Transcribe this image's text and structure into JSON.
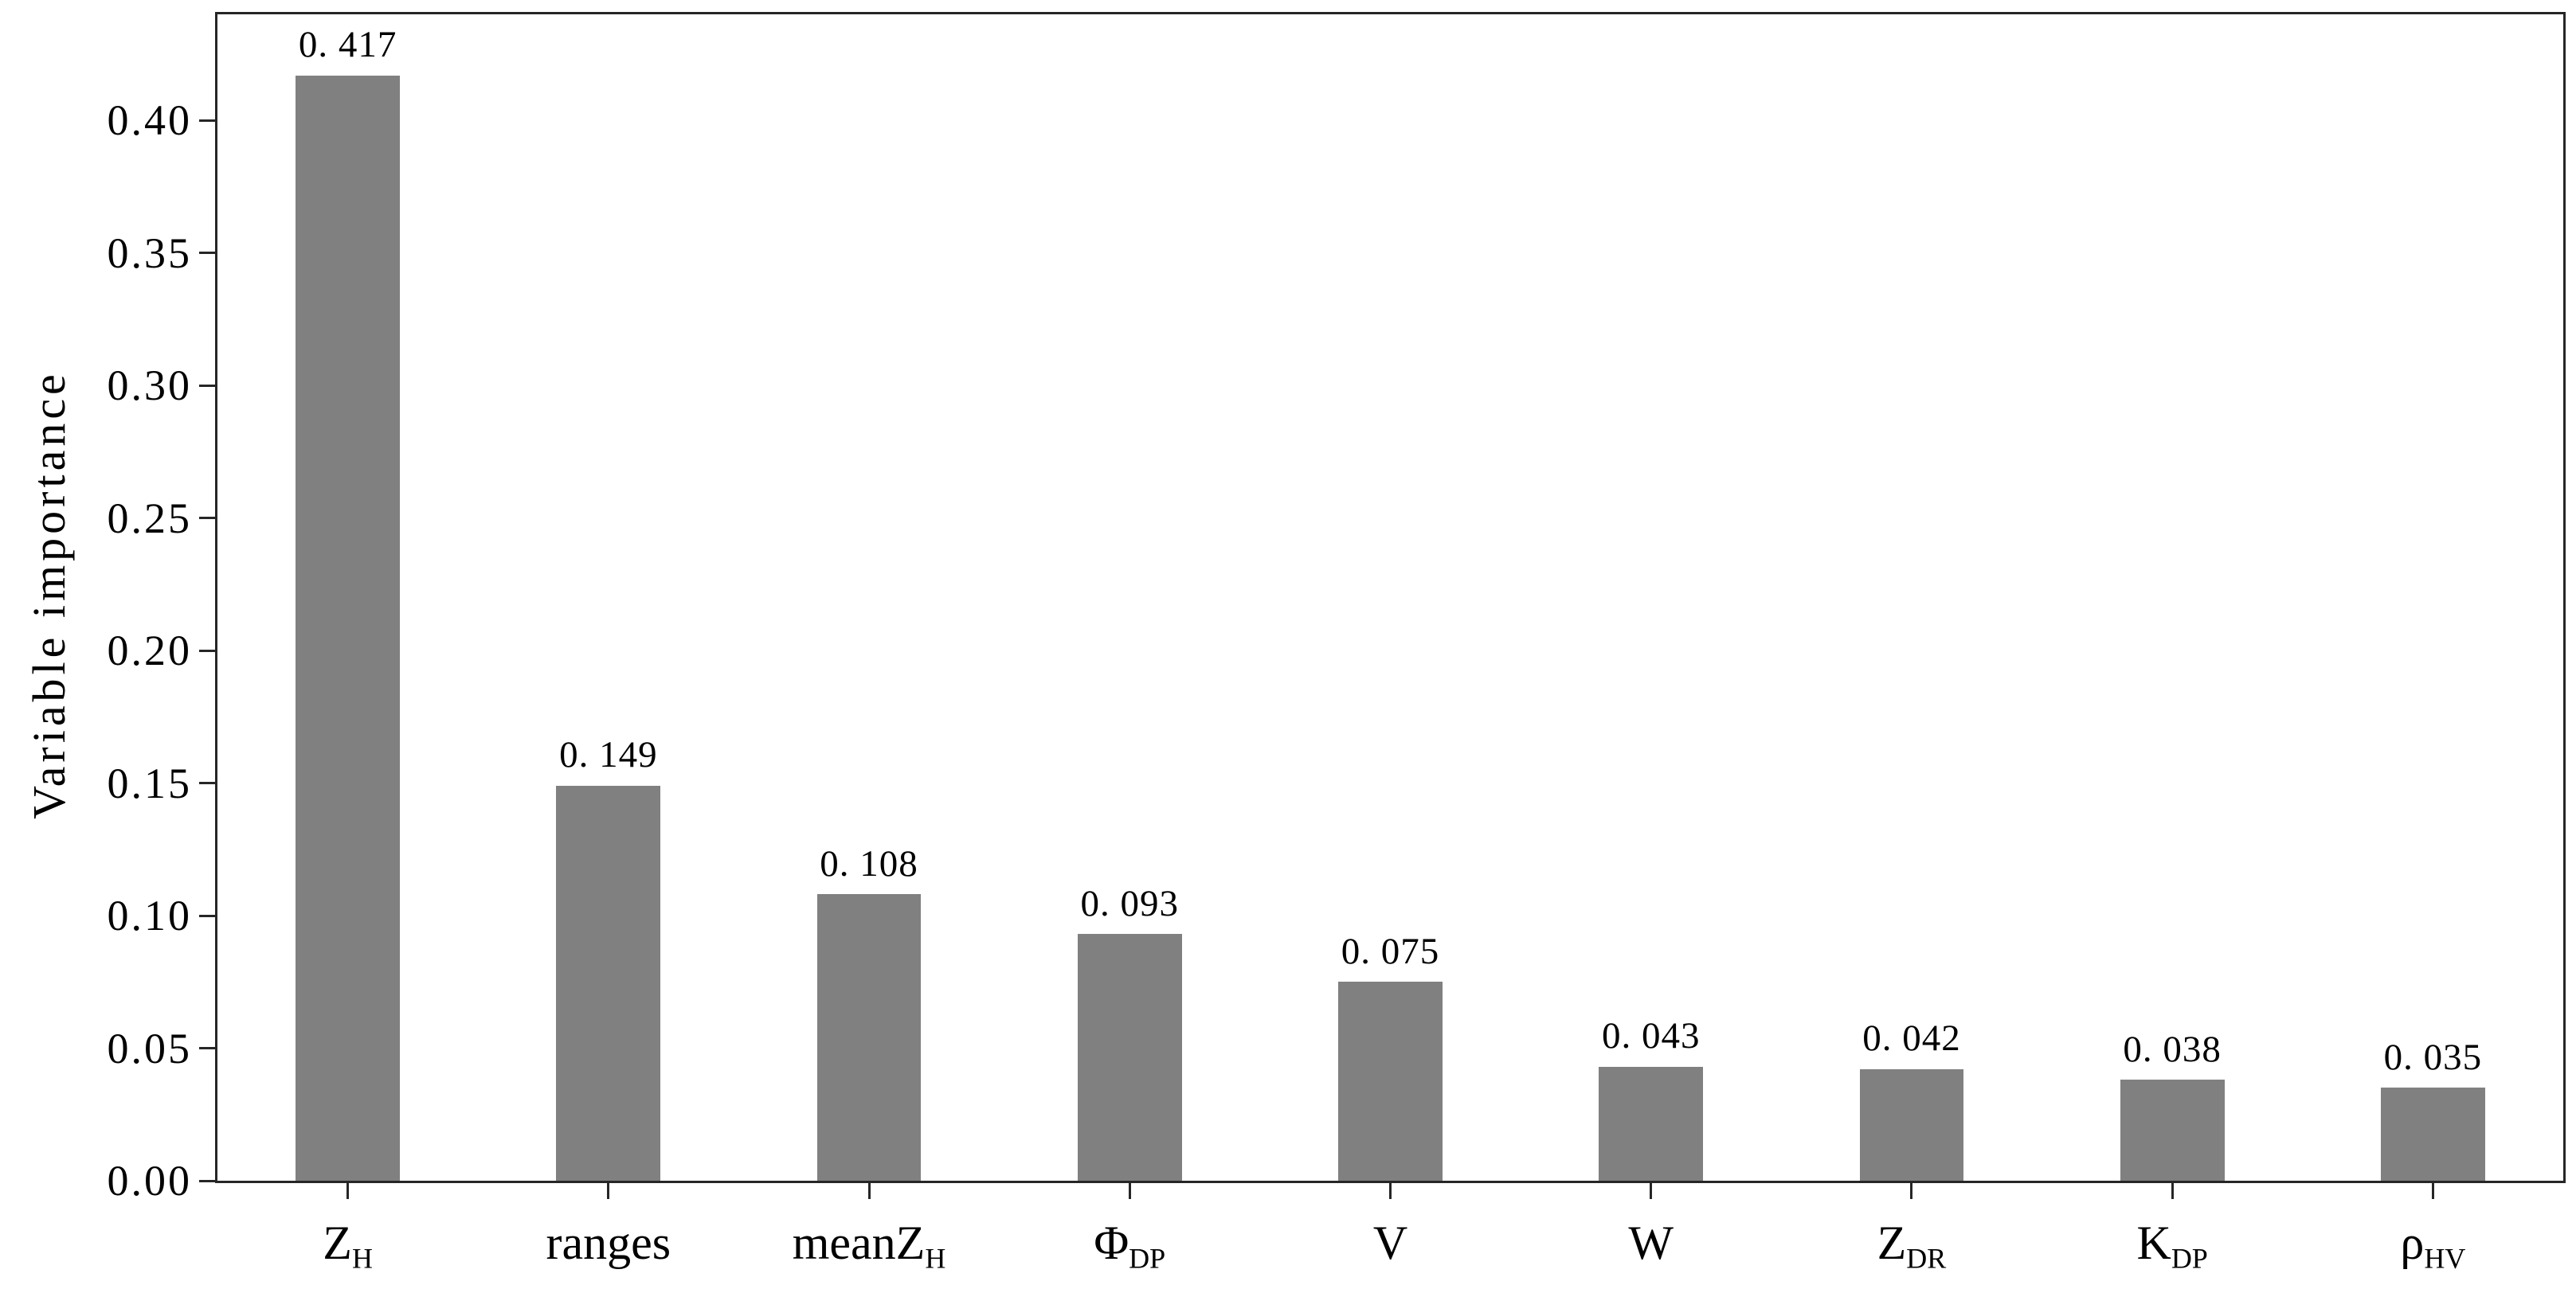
{
  "chart_data": {
    "type": "bar",
    "title": "",
    "xlabel": "",
    "ylabel": "Variable importance",
    "categories": [
      {
        "base": "Z",
        "sub": "H"
      },
      {
        "base": "ranges",
        "sub": ""
      },
      {
        "base": "meanZ",
        "sub": "H"
      },
      {
        "base": "Φ",
        "sub": "DP"
      },
      {
        "base": "V",
        "sub": ""
      },
      {
        "base": "W",
        "sub": ""
      },
      {
        "base": "Z",
        "sub": "DR"
      },
      {
        "base": "K",
        "sub": "DP"
      },
      {
        "base": "ρ",
        "sub": "HV"
      }
    ],
    "values": [
      0.417,
      0.149,
      0.108,
      0.093,
      0.075,
      0.043,
      0.042,
      0.038,
      0.035
    ],
    "value_labels": [
      "0. 417",
      "0. 149",
      "0. 108",
      "0. 093",
      "0. 075",
      "0. 043",
      "0. 042",
      "0. 038",
      "0. 035"
    ],
    "yticks": [
      "0.00",
      "0.05",
      "0.10",
      "0.15",
      "0.20",
      "0.25",
      "0.30",
      "0.35",
      "0.40"
    ],
    "ylim": [
      0,
      0.44
    ],
    "grid": false,
    "legend_position": "none",
    "bar_width_fraction": 0.4,
    "bar_color": "#808080",
    "axis_color": "#262626",
    "text_color": "#000000",
    "background_color": "#ffffff"
  }
}
